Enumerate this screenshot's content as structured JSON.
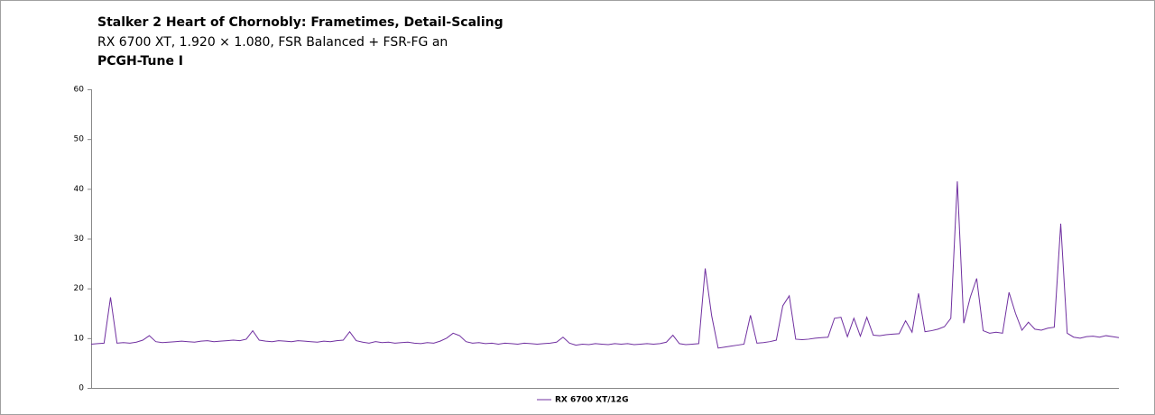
{
  "chart_data": {
    "type": "line",
    "title": "Stalker 2 Heart of Chornobly: Frametimes, Detail-Scaling",
    "subtitle": "RX 6700 XT, 1.920 × 1.080, FSR Balanced + FSR-FG an",
    "subtitle_2": "PCGH-Tune I",
    "ylim": [
      0,
      60
    ],
    "yticks": [
      0,
      10,
      20,
      30,
      40,
      50,
      60
    ],
    "grid": false,
    "legend": "bottom",
    "series": [
      {
        "name": "RX 6700 XT/12G",
        "color": "#7030a0",
        "values": [
          8.8,
          8.9,
          9.0,
          18.2,
          9.0,
          9.1,
          9.0,
          9.2,
          9.6,
          10.5,
          9.3,
          9.1,
          9.2,
          9.3,
          9.4,
          9.3,
          9.2,
          9.4,
          9.5,
          9.3,
          9.4,
          9.5,
          9.6,
          9.5,
          9.8,
          11.5,
          9.6,
          9.4,
          9.3,
          9.5,
          9.4,
          9.3,
          9.5,
          9.4,
          9.3,
          9.2,
          9.4,
          9.3,
          9.5,
          9.6,
          11.3,
          9.5,
          9.2,
          9.0,
          9.3,
          9.1,
          9.2,
          9.0,
          9.1,
          9.2,
          9.0,
          8.9,
          9.1,
          9.0,
          9.4,
          10.0,
          11.0,
          10.5,
          9.3,
          9.0,
          9.1,
          8.9,
          9.0,
          8.8,
          9.0,
          8.9,
          8.8,
          9.0,
          8.9,
          8.8,
          8.9,
          9.0,
          9.2,
          10.2,
          9.0,
          8.6,
          8.8,
          8.7,
          8.9,
          8.8,
          8.7,
          8.9,
          8.8,
          8.9,
          8.7,
          8.8,
          8.9,
          8.8,
          8.9,
          9.2,
          10.6,
          8.9,
          8.7,
          8.8,
          8.9,
          24.0,
          14.5,
          8.0,
          8.2,
          8.4,
          8.6,
          8.8,
          14.6,
          9.0,
          9.1,
          9.3,
          9.6,
          16.5,
          18.5,
          9.8,
          9.7,
          9.8,
          10.0,
          10.1,
          10.2,
          14.0,
          14.2,
          10.3,
          14.0,
          10.4,
          14.2,
          10.6,
          10.5,
          10.7,
          10.8,
          10.9,
          13.5,
          11.2,
          19.0,
          11.3,
          11.5,
          11.8,
          12.3,
          14.0,
          41.5,
          13.0,
          18.2,
          22.0,
          11.5,
          11.0,
          11.2,
          11.0,
          19.2,
          15.0,
          11.6,
          13.2,
          11.8,
          11.6,
          12.0,
          12.2,
          33.0,
          11.0,
          10.2,
          10.0,
          10.3,
          10.4,
          10.2,
          10.5,
          10.3,
          10.1
        ]
      }
    ]
  }
}
